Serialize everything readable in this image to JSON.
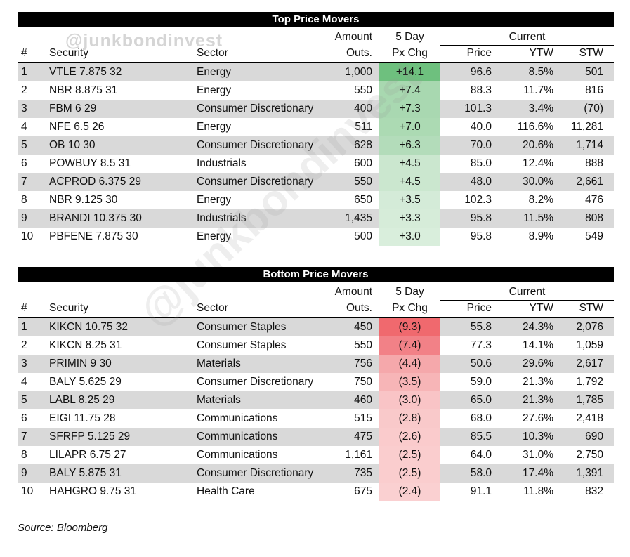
{
  "watermark": {
    "text_top": "@junkbondinvest",
    "text_diagonal": "@junkbondinvest"
  },
  "colors": {
    "row_band": "#d9d9d9",
    "title_bar_bg": "#000000",
    "title_bar_fg": "#ffffff",
    "positive_max": "#6ec07e",
    "negative_max": "#f0696e"
  },
  "chart_data": [
    {
      "type": "table",
      "title": "Top Price Movers",
      "group_header": {
        "amount_1": "Amount",
        "px_1": "5 Day",
        "current": "Current"
      },
      "columns": {
        "num": "#",
        "security": "Security",
        "sector": "Sector",
        "amount_2": "Outs.",
        "px_2": "Px Chg",
        "price": "Price",
        "ytw": "YTW",
        "stw": "STW"
      },
      "rows": [
        {
          "num": "1",
          "security": "VTLE 7.875 32",
          "sector": "Energy",
          "amount": "1,000",
          "px_chg": "+14.1",
          "px_color": "#6ec07e",
          "price": "96.6",
          "ytw": "8.5%",
          "stw": "501"
        },
        {
          "num": "2",
          "security": "NBR 8.875 31",
          "sector": "Energy",
          "amount": "550",
          "px_chg": "+7.4",
          "px_color": "#a8d8b0",
          "price": "88.3",
          "ytw": "11.7%",
          "stw": "816"
        },
        {
          "num": "3",
          "security": "FBM 6 29",
          "sector": "Consumer Discretionary",
          "amount": "400",
          "px_chg": "+7.3",
          "px_color": "#a9d8b1",
          "price": "101.3",
          "ytw": "3.4%",
          "stw": "(70)"
        },
        {
          "num": "4",
          "security": "NFE 6.5 26",
          "sector": "Energy",
          "amount": "511",
          "px_chg": "+7.0",
          "px_color": "#acdab3",
          "price": "40.0",
          "ytw": "116.6%",
          "stw": "11,281"
        },
        {
          "num": "5",
          "security": "OB 10 30",
          "sector": "Consumer Discretionary",
          "amount": "628",
          "px_chg": "+6.3",
          "px_color": "#b3dcba",
          "price": "70.0",
          "ytw": "20.6%",
          "stw": "1,714"
        },
        {
          "num": "6",
          "security": "POWBUY 8.5 31",
          "sector": "Industrials",
          "amount": "600",
          "px_chg": "+4.5",
          "px_color": "#cbe7cf",
          "price": "85.0",
          "ytw": "12.4%",
          "stw": "888"
        },
        {
          "num": "7",
          "security": "ACPROD 6.375 29",
          "sector": "Consumer Discretionary",
          "amount": "550",
          "px_chg": "+4.5",
          "px_color": "#cbe7cf",
          "price": "48.0",
          "ytw": "30.0%",
          "stw": "2,661"
        },
        {
          "num": "8",
          "security": "NBR 9.125 30",
          "sector": "Energy",
          "amount": "650",
          "px_chg": "+3.5",
          "px_color": "#d4ebd8",
          "price": "102.3",
          "ytw": "8.2%",
          "stw": "476"
        },
        {
          "num": "9",
          "security": "BRANDI 10.375 30",
          "sector": "Industrials",
          "amount": "1,435",
          "px_chg": "+3.3",
          "px_color": "#d6ecd9",
          "price": "95.8",
          "ytw": "11.5%",
          "stw": "808"
        },
        {
          "num": "10",
          "security": "PBFENE 7.875 30",
          "sector": "Energy",
          "amount": "500",
          "px_chg": "+3.0",
          "px_color": "#d9eedc",
          "price": "95.8",
          "ytw": "8.9%",
          "stw": "549"
        }
      ]
    },
    {
      "type": "table",
      "title": "Bottom Price Movers",
      "group_header": {
        "amount_1": "Amount",
        "px_1": "5 Day",
        "current": "Current"
      },
      "columns": {
        "num": "#",
        "security": "Security",
        "sector": "Sector",
        "amount_2": "Outs.",
        "px_2": "Px Chg",
        "price": "Price",
        "ytw": "YTW",
        "stw": "STW"
      },
      "rows": [
        {
          "num": "1",
          "security": "KIKCN 10.75 32",
          "sector": "Consumer Staples",
          "amount": "450",
          "px_chg": "(9.3)",
          "px_color": "#f0696e",
          "price": "55.8",
          "ytw": "24.3%",
          "stw": "2,076"
        },
        {
          "num": "2",
          "security": "KIKCN 8.25 31",
          "sector": "Consumer Staples",
          "amount": "550",
          "px_chg": "(7.4)",
          "px_color": "#f28187",
          "price": "77.3",
          "ytw": "14.1%",
          "stw": "1,059"
        },
        {
          "num": "3",
          "security": "PRIMIN 9 30",
          "sector": "Materials",
          "amount": "756",
          "px_chg": "(4.4)",
          "px_color": "#f5a8ab",
          "price": "50.6",
          "ytw": "29.6%",
          "stw": "2,617"
        },
        {
          "num": "4",
          "security": "BALY 5.625 29",
          "sector": "Consumer Discretionary",
          "amount": "750",
          "px_chg": "(3.5)",
          "px_color": "#f7b5b7",
          "price": "59.0",
          "ytw": "21.3%",
          "stw": "1,792"
        },
        {
          "num": "5",
          "security": "LABL 8.25 29",
          "sector": "Materials",
          "amount": "460",
          "px_chg": "(3.0)",
          "px_color": "#f9c4c6",
          "price": "65.0",
          "ytw": "21.3%",
          "stw": "1,785"
        },
        {
          "num": "6",
          "security": "EIGI 11.75 28",
          "sector": "Communications",
          "amount": "515",
          "px_chg": "(2.8)",
          "px_color": "#f9c9ca",
          "price": "68.0",
          "ytw": "27.6%",
          "stw": "2,418"
        },
        {
          "num": "7",
          "security": "SFRFP 5.125 29",
          "sector": "Communications",
          "amount": "475",
          "px_chg": "(2.6)",
          "px_color": "#facbcc",
          "price": "85.5",
          "ytw": "10.3%",
          "stw": "690"
        },
        {
          "num": "8",
          "security": "LILAPR 6.75 27",
          "sector": "Communications",
          "amount": "1,161",
          "px_chg": "(2.5)",
          "px_color": "#facdce",
          "price": "64.0",
          "ytw": "31.0%",
          "stw": "2,750"
        },
        {
          "num": "9",
          "security": "BALY 5.875 31",
          "sector": "Consumer Discretionary",
          "amount": "735",
          "px_chg": "(2.5)",
          "px_color": "#facdce",
          "price": "58.0",
          "ytw": "17.4%",
          "stw": "1,391"
        },
        {
          "num": "10",
          "security": "HAHGRO 9.75 31",
          "sector": "Health Care",
          "amount": "675",
          "px_chg": "(2.4)",
          "px_color": "#fad0d1",
          "price": "91.1",
          "ytw": "11.8%",
          "stw": "832"
        }
      ]
    }
  ],
  "footer": {
    "source": "Source: Bloomberg"
  }
}
